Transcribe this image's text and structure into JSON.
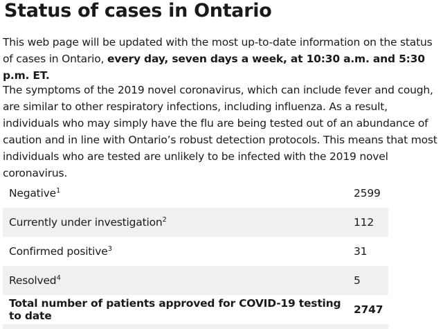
{
  "title": "Status of cases in Ontario",
  "intro": {
    "text": "This web page will be updated with the most up-to-date information on the status of cases in Ontario, ",
    "bold": "every day, seven days a week, at 10:30 a.m. and 5:30 p.m. ET."
  },
  "symptoms_text": "The symptoms of the 2019 novel coronavirus, which can include fever and cough, are similar to other respiratory infections, including influenza. As a result, individuals who may simply have the flu are being tested out of an abundance of caution and in line with Ontario’s robust detection protocols. This means that most individuals who are tested are unlikely to be infected with the 2019 novel coronavirus.",
  "table": {
    "rows": [
      {
        "label": "Negative",
        "note": "1",
        "value": "2599"
      },
      {
        "label": "Currently under investigation",
        "note": "2",
        "value": "112"
      },
      {
        "label": "Confirmed positive",
        "note": "3",
        "value": "31"
      },
      {
        "label": "Resolved",
        "note": "4",
        "value": "5"
      }
    ],
    "total": {
      "label": "Total number of patients approved for COVID-19 testing to date",
      "value": "2747"
    }
  }
}
